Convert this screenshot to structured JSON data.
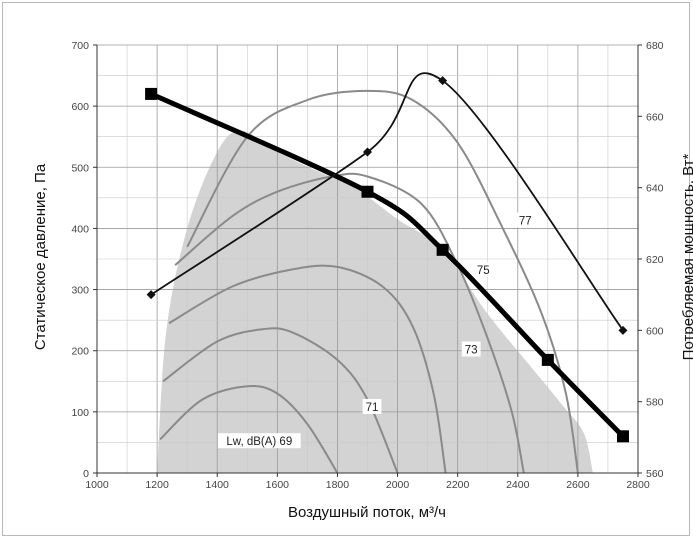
{
  "chart_data": {
    "type": "line",
    "title": "",
    "xlabel": "Воздушный поток, м³/ч",
    "ylabel": "Статическое давление, Па",
    "y2label": "Потребляемая мощность, Вт*",
    "xlim": [
      1000,
      2800
    ],
    "ylim": [
      0,
      700
    ],
    "y2lim": [
      560,
      680
    ],
    "x_ticks": [
      "1000",
      "1200",
      "1400",
      "1600",
      "1800",
      "2000",
      "2200",
      "2400",
      "2600",
      "2800"
    ],
    "y_ticks": [
      "0",
      "100",
      "200",
      "300",
      "400",
      "500",
      "600",
      "700"
    ],
    "y2_ticks": [
      "560",
      "580",
      "600",
      "620",
      "640",
      "660",
      "680"
    ],
    "grid": true,
    "series": [
      {
        "name": "",
        "role": "fan-curve",
        "color": "#000000",
        "marker": "square",
        "x": [
          1180,
          1900,
          2150,
          2500,
          2750
        ],
        "y": [
          620,
          460,
          365,
          185,
          60
        ]
      },
      {
        "name": "",
        "role": "power",
        "axis": "right",
        "color": "#111111",
        "marker": "diamond",
        "x": [
          1180,
          1900,
          2150,
          2750
        ],
        "y": [
          610,
          650,
          670,
          600
        ]
      }
    ],
    "noise_curves": [
      {
        "label": "Lw, dB(A) 69",
        "x": [
          1210,
          1350,
          1500,
          1600,
          1700,
          1800
        ],
        "y": [
          55,
          120,
          142,
          130,
          80,
          0
        ]
      },
      {
        "label": "71",
        "x": [
          1220,
          1400,
          1550,
          1650,
          1800,
          1900,
          2000
        ],
        "y": [
          150,
          215,
          235,
          230,
          185,
          120,
          0
        ]
      },
      {
        "label": "73",
        "x": [
          1240,
          1450,
          1650,
          1800,
          1950,
          2050,
          2120,
          2160
        ],
        "y": [
          245,
          305,
          333,
          337,
          305,
          240,
          130,
          0
        ]
      },
      {
        "label": "75",
        "x": [
          1260,
          1450,
          1600,
          1780,
          1900,
          2080,
          2200,
          2300,
          2380,
          2420
        ],
        "y": [
          340,
          420,
          460,
          485,
          485,
          440,
          340,
          220,
          100,
          0
        ]
      },
      {
        "label": "77",
        "x": [
          1300,
          1500,
          1700,
          1900,
          2050,
          2200,
          2350,
          2480,
          2560,
          2600
        ],
        "y": [
          370,
          550,
          610,
          625,
          610,
          540,
          400,
          260,
          130,
          0
        ]
      }
    ],
    "operating_area": {
      "x": [
        1200,
        1230,
        1300,
        1400,
        1480,
        1600,
        1750,
        1850,
        2000,
        2150,
        2300,
        2450,
        2550,
        2620,
        2650,
        2620,
        2560,
        1200
      ],
      "y": [
        0,
        230,
        400,
        525,
        560,
        525,
        490,
        470,
        415,
        365,
        260,
        170,
        110,
        65,
        0,
        0,
        0,
        0
      ]
    }
  }
}
